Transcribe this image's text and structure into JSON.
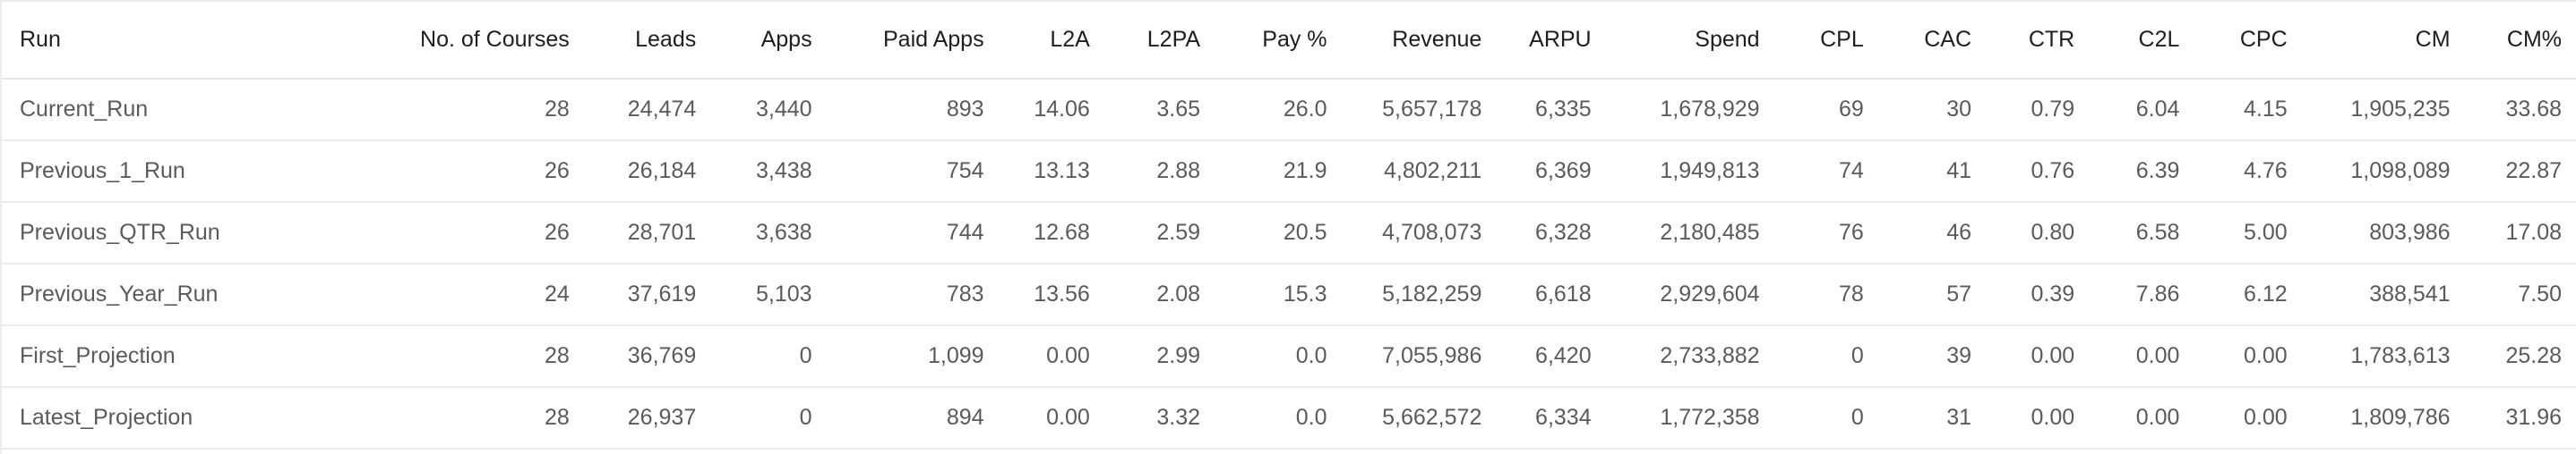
{
  "table": {
    "columns": [
      "Run",
      "No. of Courses",
      "Leads",
      "Apps",
      "Paid Apps",
      "L2A",
      "L2PA",
      "Pay %",
      "Revenue",
      "ARPU",
      "Spend",
      "CPL",
      "CAC",
      "CTR",
      "C2L",
      "CPC",
      "CM",
      "CM%"
    ],
    "rows": [
      [
        "Current_Run",
        "28",
        "24,474",
        "3,440",
        "893",
        "14.06",
        "3.65",
        "26.0",
        "5,657,178",
        "6,335",
        "1,678,929",
        "69",
        "30",
        "0.79",
        "6.04",
        "4.15",
        "1,905,235",
        "33.68"
      ],
      [
        "Previous_1_Run",
        "26",
        "26,184",
        "3,438",
        "754",
        "13.13",
        "2.88",
        "21.9",
        "4,802,211",
        "6,369",
        "1,949,813",
        "74",
        "41",
        "0.76",
        "6.39",
        "4.76",
        "1,098,089",
        "22.87"
      ],
      [
        "Previous_QTR_Run",
        "26",
        "28,701",
        "3,638",
        "744",
        "12.68",
        "2.59",
        "20.5",
        "4,708,073",
        "6,328",
        "2,180,485",
        "76",
        "46",
        "0.80",
        "6.58",
        "5.00",
        "803,986",
        "17.08"
      ],
      [
        "Previous_Year_Run",
        "24",
        "37,619",
        "5,103",
        "783",
        "13.56",
        "2.08",
        "15.3",
        "5,182,259",
        "6,618",
        "2,929,604",
        "78",
        "57",
        "0.39",
        "7.86",
        "6.12",
        "388,541",
        "7.50"
      ],
      [
        "First_Projection",
        "28",
        "36,769",
        "0",
        "1,099",
        "0.00",
        "2.99",
        "0.0",
        "7,055,986",
        "6,420",
        "2,733,882",
        "0",
        "39",
        "0.00",
        "0.00",
        "0.00",
        "1,783,613",
        "25.28"
      ],
      [
        "Latest_Projection",
        "28",
        "26,937",
        "0",
        "894",
        "0.00",
        "3.32",
        "0.0",
        "5,662,572",
        "6,334",
        "1,772,358",
        "0",
        "31",
        "0.00",
        "0.00",
        "0.00",
        "1,809,786",
        "31.96"
      ]
    ]
  }
}
